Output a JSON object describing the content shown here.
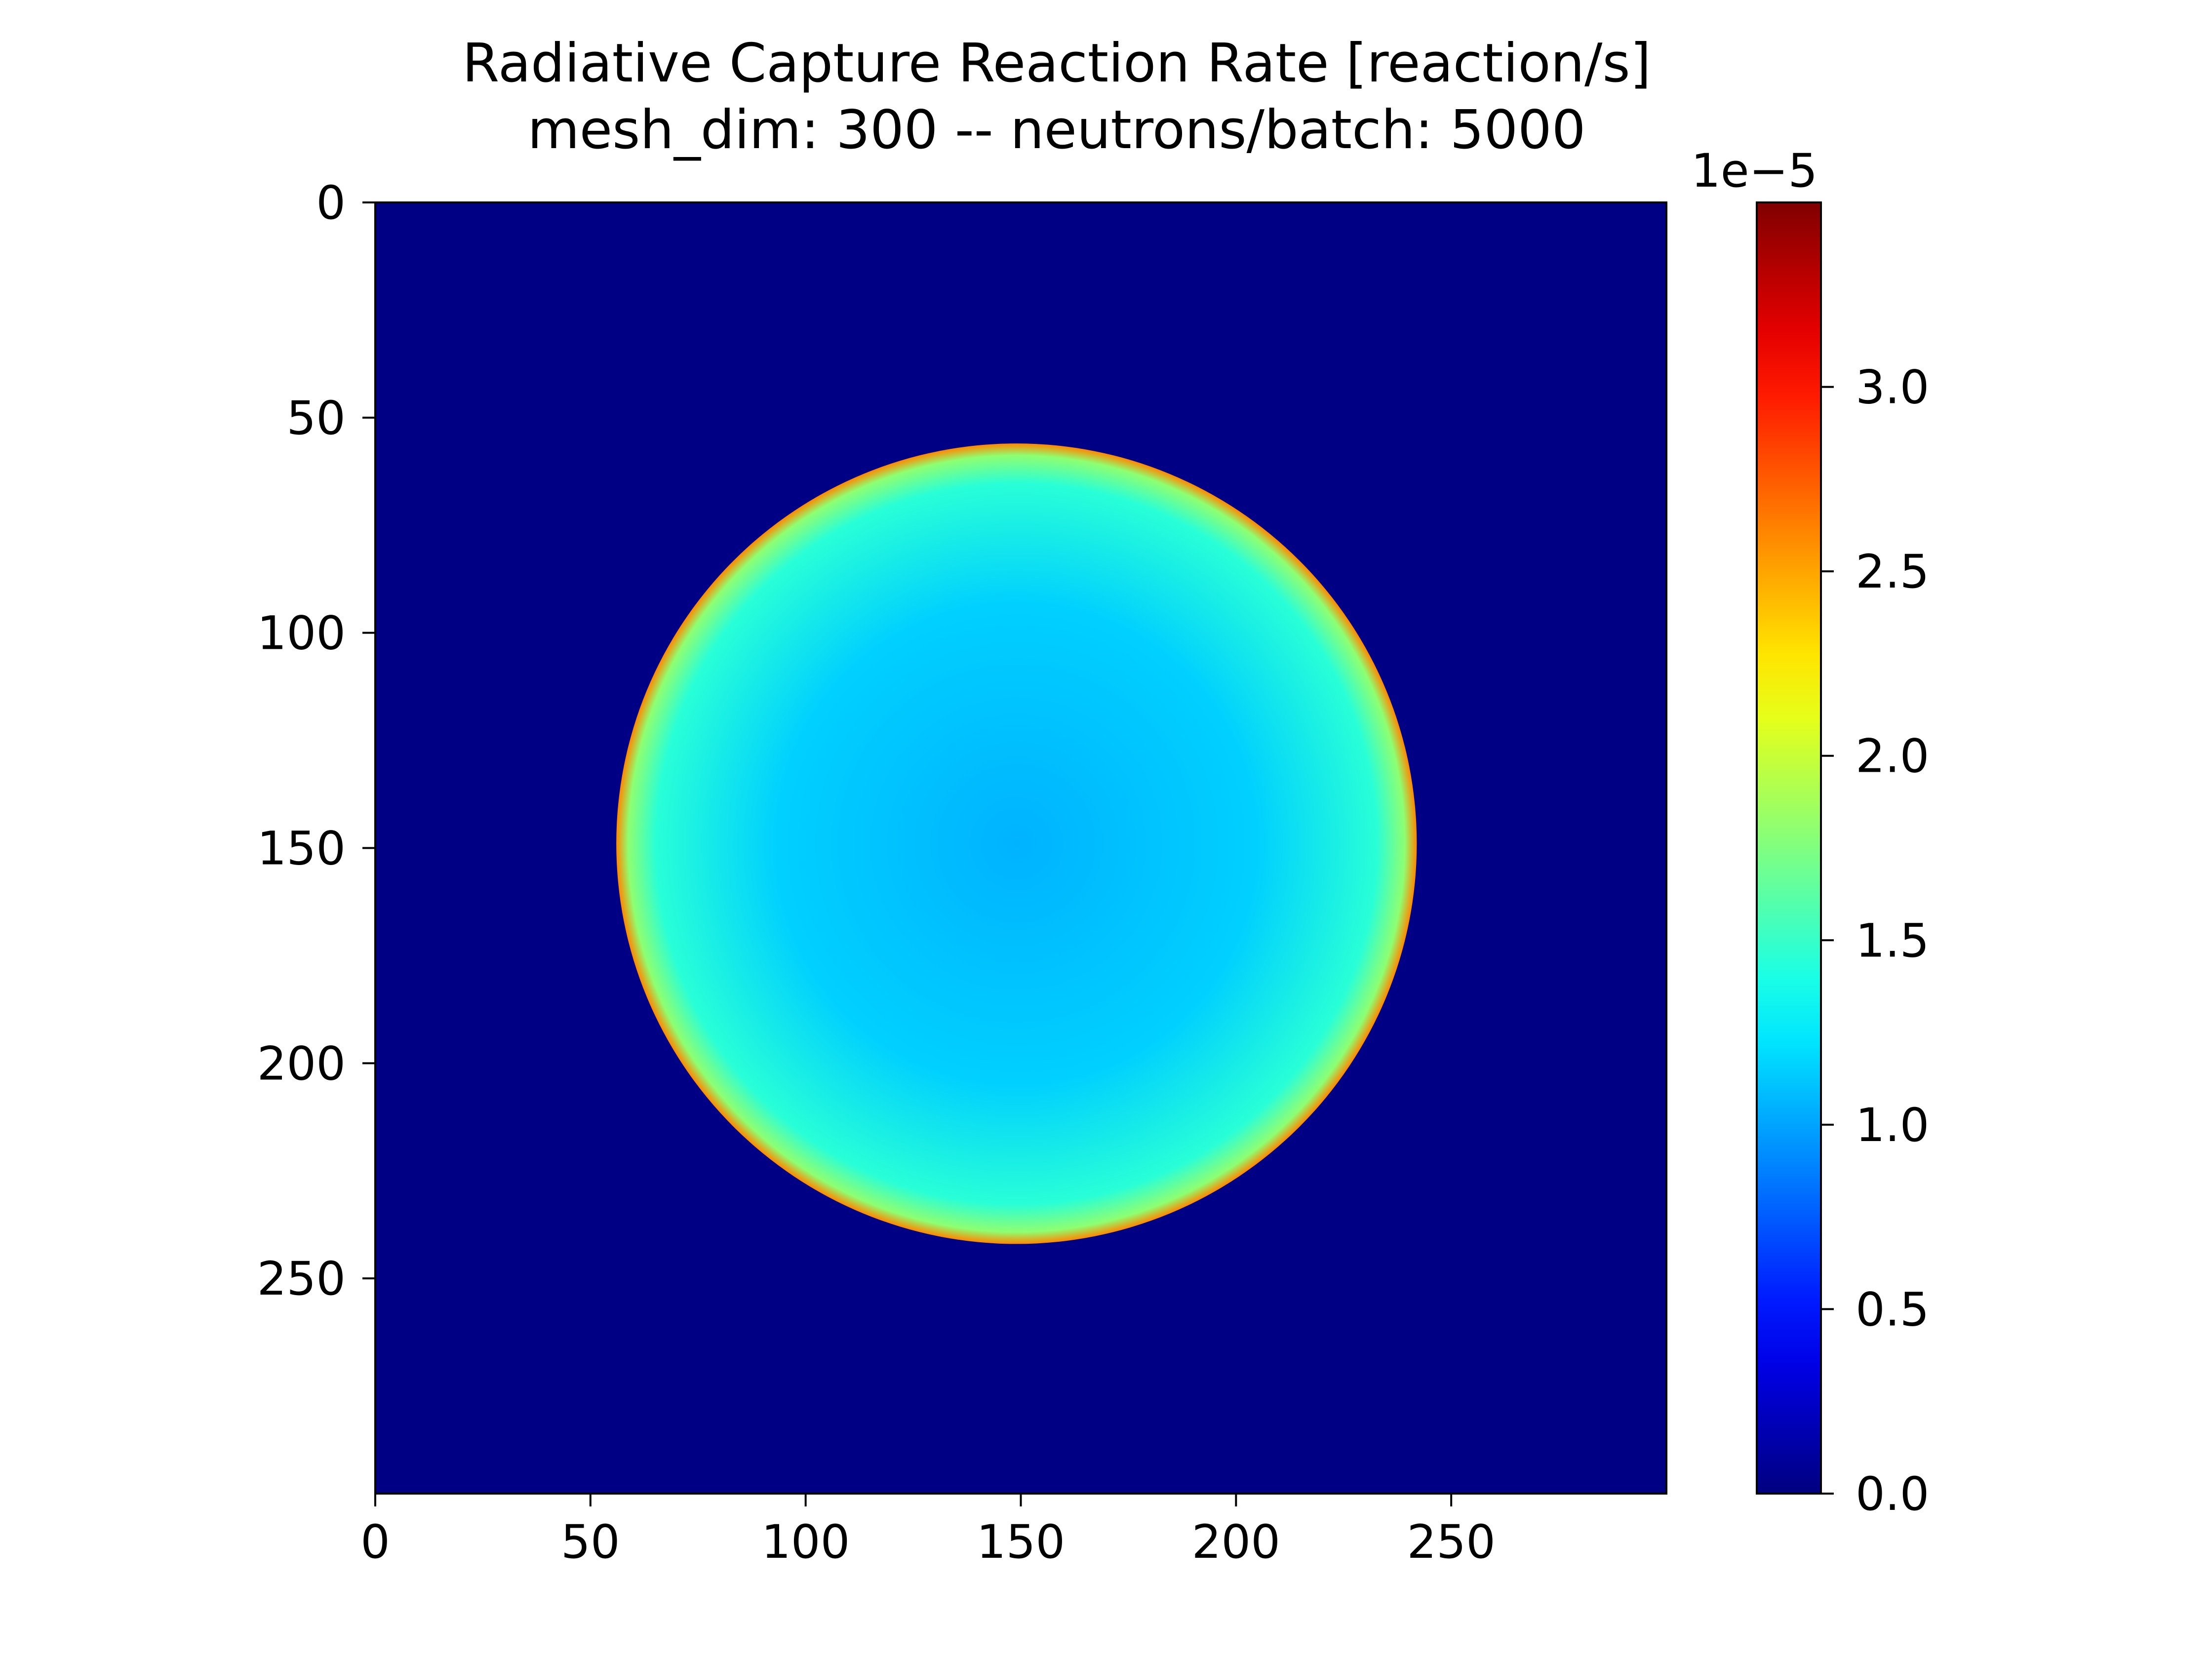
{
  "chart_data": {
    "type": "heatmap",
    "title": [
      "Radiative Capture Reaction Rate [reaction/s]",
      "mesh_dim: 300 -- neutrons/batch: 5000"
    ],
    "xlabel": "",
    "ylabel": "",
    "mesh_dim": 300,
    "xlim": [
      0,
      300
    ],
    "ylim": [
      300,
      0
    ],
    "x_ticks": [
      "0",
      "50",
      "100",
      "150",
      "200",
      "250"
    ],
    "y_ticks": [
      "0",
      "50",
      "100",
      "150",
      "200",
      "250"
    ],
    "colormap": "jet",
    "colorbar": {
      "range": [
        0.0,
        3.5
      ],
      "offset_text": "1e−5",
      "ticks": [
        "0.0",
        "0.5",
        "1.0",
        "1.5",
        "2.0",
        "2.5",
        "3.0"
      ]
    },
    "disk": {
      "center_x": 149,
      "center_y": 149,
      "radius": 93,
      "center_value": 1.05,
      "edge_value": 1.45,
      "rim_value": 2.6,
      "outside_value": 0.02
    },
    "grid": false
  },
  "colors": {
    "background": "#ffffff",
    "axes": "#000000",
    "outside": "#000083",
    "inside": "#1fa0ff",
    "rim": "#ffe000"
  }
}
